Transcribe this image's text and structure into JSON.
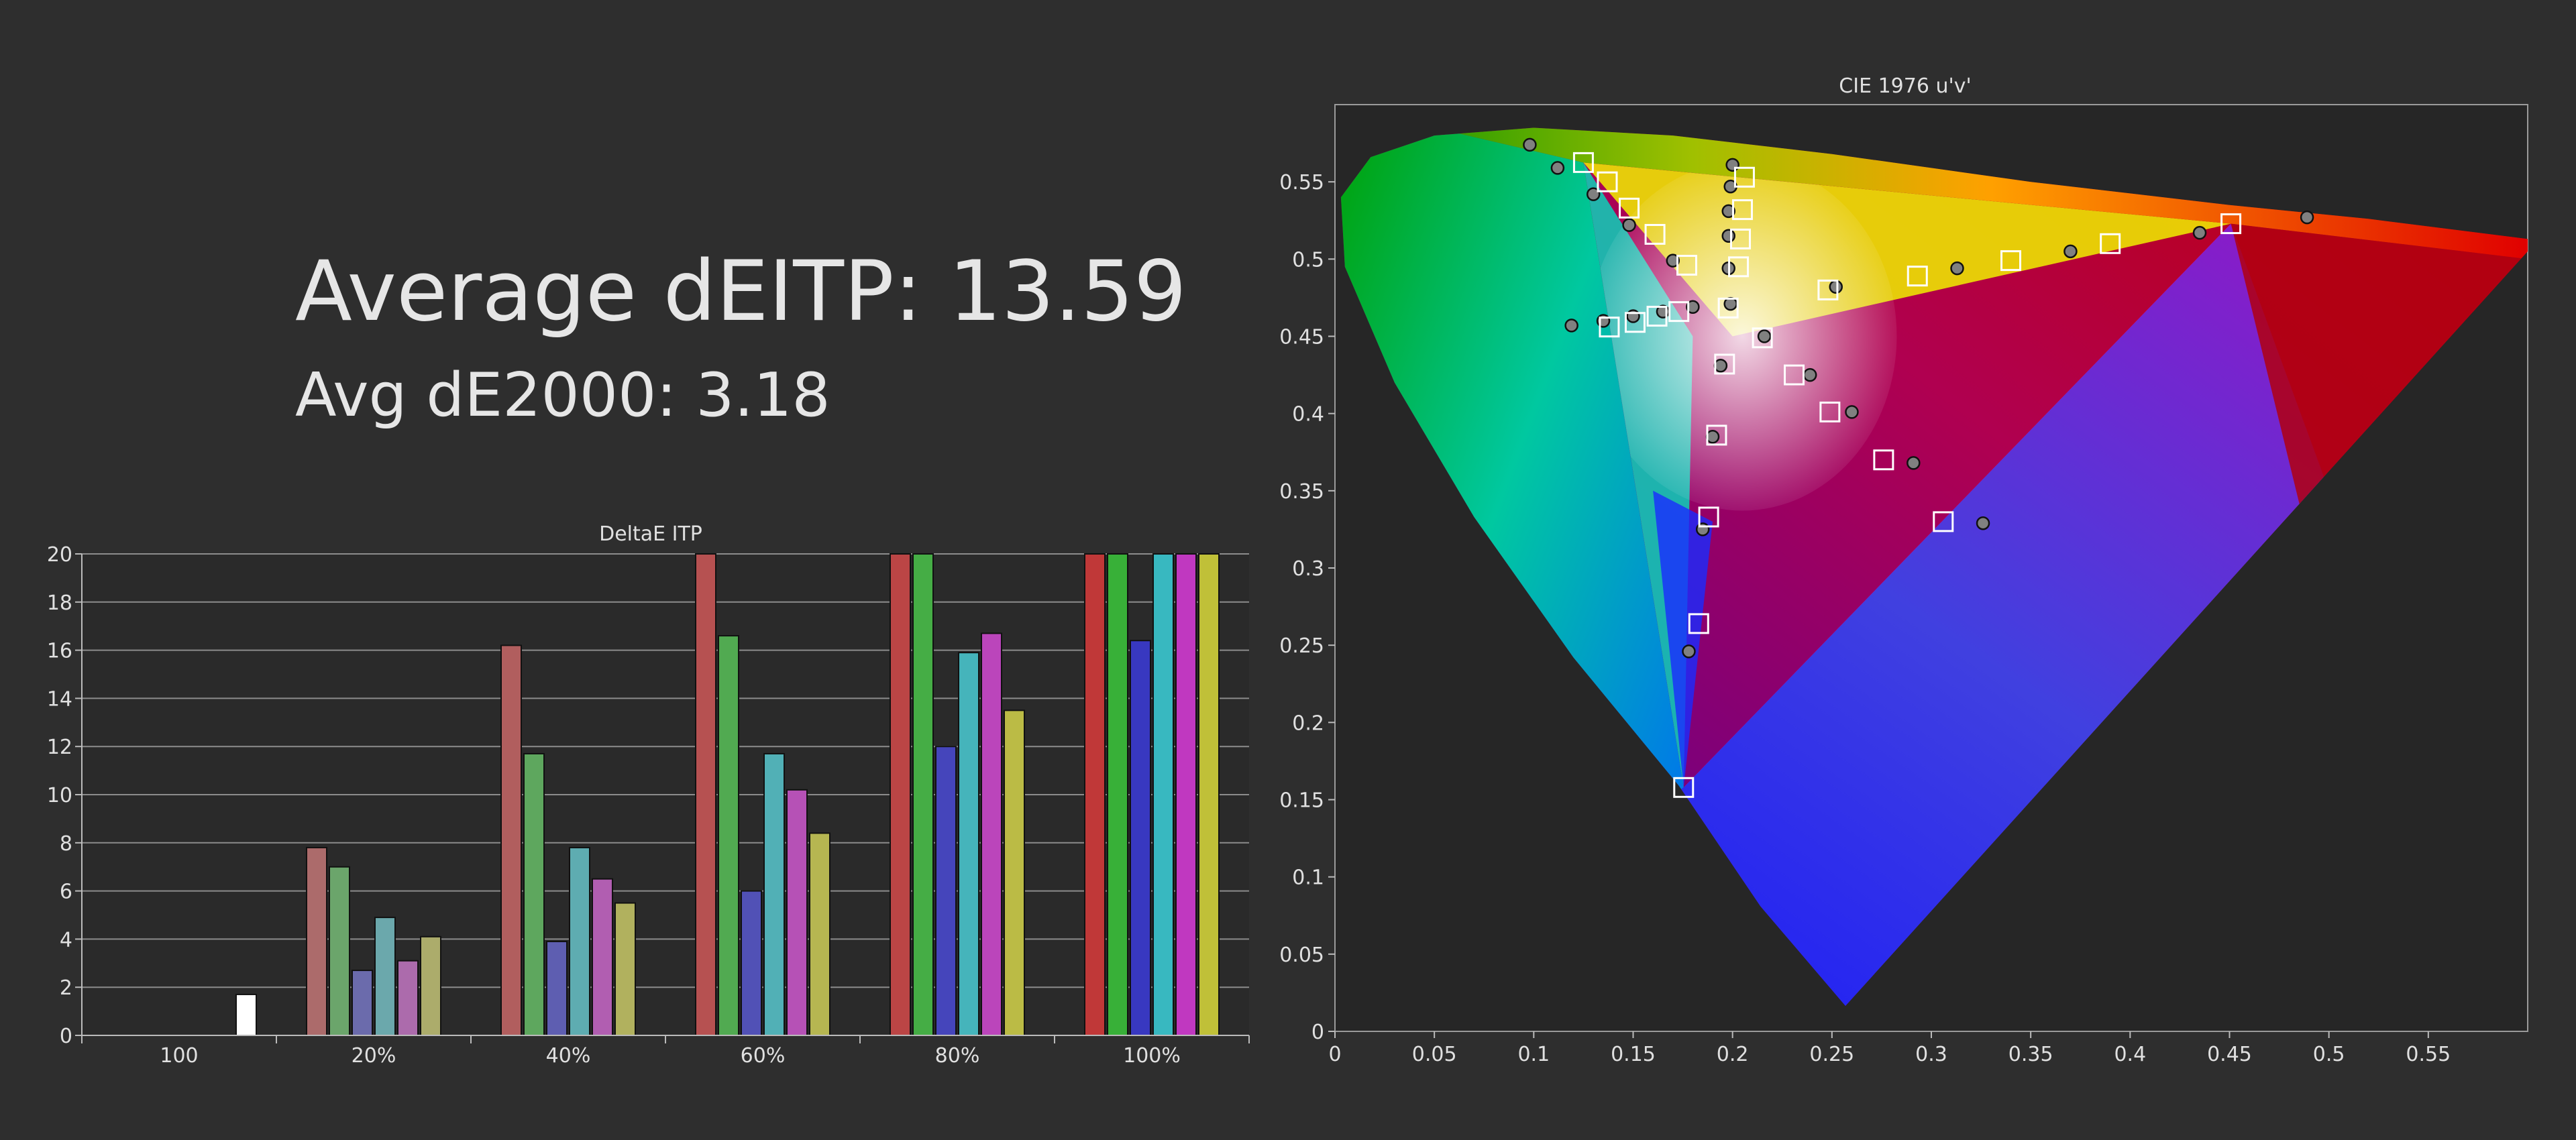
{
  "stats": {
    "avg_itp_label": "Average dEITP: 13.59",
    "avg_de2000_label": "Avg dE2000: 3.18"
  },
  "chart_data": [
    {
      "type": "bar",
      "title": "DeltaE ITP",
      "xlabel": "",
      "ylabel": "",
      "ylim": [
        0,
        20
      ],
      "yticks": [
        0,
        2,
        4,
        6,
        8,
        10,
        12,
        14,
        16,
        18,
        20
      ],
      "grid": true,
      "categories": [
        "100",
        "20%",
        "40%",
        "60%",
        "80%",
        "100%"
      ],
      "series": [
        {
          "color": "#c03838",
          "values": [
            null,
            7.8,
            16.2,
            20,
            20,
            20
          ]
        },
        {
          "color": "#38b038",
          "values": [
            null,
            7.0,
            11.7,
            16.6,
            20,
            20
          ]
        },
        {
          "color": "#3838c0",
          "values": [
            null,
            2.7,
            3.9,
            6.0,
            12.0,
            16.4
          ]
        },
        {
          "color": "#38b8c0",
          "values": [
            null,
            4.9,
            7.8,
            11.7,
            15.9,
            20
          ]
        },
        {
          "color": "#c038c0",
          "values": [
            null,
            3.1,
            6.5,
            10.2,
            16.7,
            20
          ]
        },
        {
          "color": "#c0c038",
          "values": [
            null,
            4.1,
            5.5,
            8.4,
            13.5,
            20
          ]
        },
        {
          "color": "#ffffff",
          "values": [
            1.7,
            null,
            null,
            null,
            null,
            null
          ]
        }
      ]
    },
    {
      "type": "scatter",
      "title": "CIE 1976 u'v'",
      "xlabel": "",
      "ylabel": "",
      "xlim": [
        0,
        0.6
      ],
      "ylim": [
        0,
        0.6
      ],
      "xticks": [
        0,
        0.05,
        0.1,
        0.15,
        0.2,
        0.25,
        0.3,
        0.35,
        0.4,
        0.45,
        0.5,
        0.55
      ],
      "yticks": [
        0,
        0.05,
        0.1,
        0.15,
        0.2,
        0.25,
        0.3,
        0.35,
        0.4,
        0.45,
        0.5,
        0.55
      ],
      "grid": false,
      "spectral_locus": [
        [
          0.2568,
          0.0165
        ],
        [
          0.214,
          0.081
        ],
        [
          0.173,
          0.159
        ],
        [
          0.12,
          0.242
        ],
        [
          0.07,
          0.333
        ],
        [
          0.03,
          0.42
        ],
        [
          0.005,
          0.495
        ],
        [
          0.003,
          0.54
        ],
        [
          0.018,
          0.566
        ],
        [
          0.05,
          0.58
        ],
        [
          0.1,
          0.585
        ],
        [
          0.17,
          0.58
        ],
        [
          0.25,
          0.568
        ],
        [
          0.35,
          0.55
        ],
        [
          0.45,
          0.535
        ],
        [
          0.52,
          0.526
        ],
        [
          0.6,
          0.513
        ],
        [
          0.6,
          0.505
        ]
      ],
      "gamut_triangle": [
        [
          0.4507,
          0.5229
        ],
        [
          0.125,
          0.5625
        ],
        [
          0.1754,
          0.1579
        ]
      ],
      "targets": [
        [
          0.4507,
          0.5229
        ],
        [
          0.39,
          0.51
        ],
        [
          0.34,
          0.499
        ],
        [
          0.293,
          0.489
        ],
        [
          0.248,
          0.48
        ],
        [
          0.125,
          0.5625
        ],
        [
          0.137,
          0.55
        ],
        [
          0.148,
          0.533
        ],
        [
          0.161,
          0.516
        ],
        [
          0.177,
          0.496
        ],
        [
          0.1754,
          0.1579
        ],
        [
          0.183,
          0.264
        ],
        [
          0.188,
          0.333
        ],
        [
          0.192,
          0.386
        ],
        [
          0.196,
          0.432
        ],
        [
          0.206,
          0.553
        ],
        [
          0.205,
          0.532
        ],
        [
          0.204,
          0.513
        ],
        [
          0.203,
          0.495
        ],
        [
          0.215,
          0.449
        ],
        [
          0.231,
          0.425
        ],
        [
          0.249,
          0.401
        ],
        [
          0.276,
          0.37
        ],
        [
          0.306,
          0.33
        ],
        [
          0.138,
          0.456
        ],
        [
          0.151,
          0.459
        ],
        [
          0.162,
          0.463
        ],
        [
          0.173,
          0.466
        ],
        [
          0.1978,
          0.4683
        ]
      ],
      "measured": [
        [
          0.489,
          0.527
        ],
        [
          0.435,
          0.517
        ],
        [
          0.37,
          0.505
        ],
        [
          0.313,
          0.494
        ],
        [
          0.252,
          0.482
        ],
        [
          0.098,
          0.574
        ],
        [
          0.112,
          0.559
        ],
        [
          0.13,
          0.542
        ],
        [
          0.148,
          0.522
        ],
        [
          0.17,
          0.499
        ],
        [
          0.178,
          0.246
        ],
        [
          0.185,
          0.325
        ],
        [
          0.19,
          0.385
        ],
        [
          0.194,
          0.431
        ],
        [
          0.2,
          0.561
        ],
        [
          0.199,
          0.547
        ],
        [
          0.198,
          0.531
        ],
        [
          0.198,
          0.515
        ],
        [
          0.198,
          0.494
        ],
        [
          0.216,
          0.45
        ],
        [
          0.239,
          0.425
        ],
        [
          0.26,
          0.401
        ],
        [
          0.291,
          0.368
        ],
        [
          0.326,
          0.329
        ],
        [
          0.119,
          0.457
        ],
        [
          0.135,
          0.46
        ],
        [
          0.15,
          0.463
        ],
        [
          0.165,
          0.466
        ],
        [
          0.18,
          0.469
        ],
        [
          0.199,
          0.471
        ]
      ]
    }
  ]
}
